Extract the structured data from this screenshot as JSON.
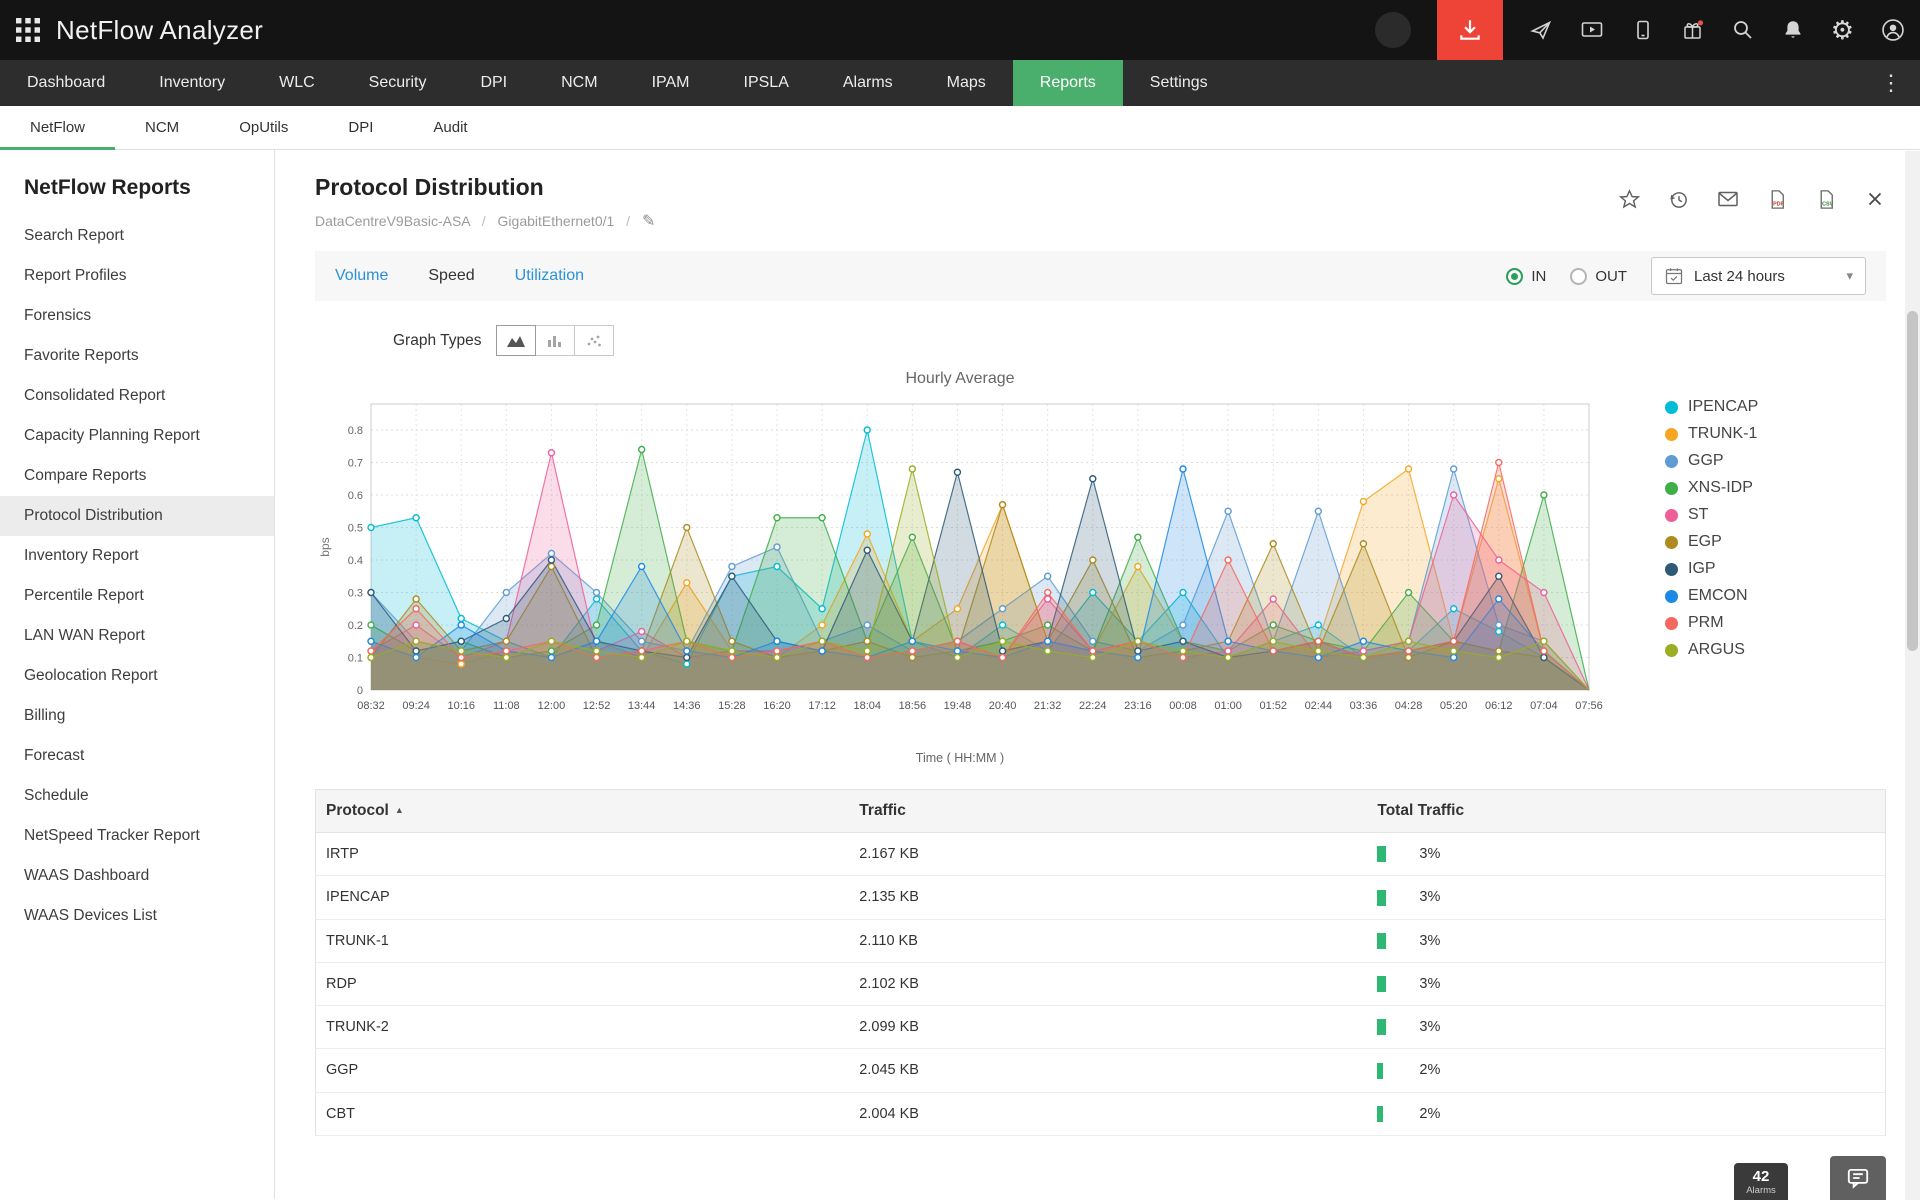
{
  "topbar": {
    "app_title": "NetFlow Analyzer",
    "right_icons": [
      "inactive-circle",
      "download",
      "rocket",
      "screencast",
      "mobile-sync",
      "gift",
      "search",
      "bell",
      "gear",
      "user"
    ]
  },
  "nav": {
    "items": [
      "Dashboard",
      "Inventory",
      "WLC",
      "Security",
      "DPI",
      "NCM",
      "IPAM",
      "IPSLA",
      "Alarms",
      "Maps",
      "Reports",
      "Settings"
    ],
    "active": "Reports"
  },
  "subnav": {
    "items": [
      "NetFlow",
      "NCM",
      "OpUtils",
      "DPI",
      "Audit"
    ],
    "active": "NetFlow"
  },
  "sidebar": {
    "title": "NetFlow Reports",
    "items": [
      "Search Report",
      "Report Profiles",
      "Forensics",
      "Favorite Reports",
      "Consolidated Report",
      "Capacity Planning Report",
      "Compare Reports",
      "Protocol Distribution",
      "Inventory Report",
      "Percentile Report",
      "LAN WAN Report",
      "Geolocation Report",
      "Billing",
      "Forecast",
      "Schedule",
      "NetSpeed Tracker Report",
      "WAAS Dashboard",
      "WAAS Devices List"
    ],
    "active": "Protocol Distribution"
  },
  "page": {
    "title": "Protocol Distribution",
    "breadcrumb": [
      "DataCentreV9Basic-ASA",
      "GigabitEthernet0/1"
    ],
    "action_icons": [
      "favorite-star",
      "history",
      "email",
      "export-pdf",
      "export-csv",
      "close"
    ],
    "view_tabs": {
      "items": [
        "Volume",
        "Speed",
        "Utilization"
      ],
      "active": "Speed"
    },
    "direction": {
      "options": [
        "IN",
        "OUT"
      ],
      "selected": "IN"
    },
    "time_range": "Last 24 hours",
    "graph_types_label": "Graph Types"
  },
  "chart_data": {
    "type": "area",
    "title": "Hourly Average",
    "xlabel": "Time ( HH:MM )",
    "ylabel": "bps",
    "ylim": [
      0,
      0.8
    ],
    "grid": true,
    "legend_position": "right",
    "x": [
      "08:32",
      "09:24",
      "10:16",
      "11:08",
      "12:00",
      "12:52",
      "13:44",
      "14:36",
      "15:28",
      "16:20",
      "17:12",
      "18:04",
      "18:56",
      "19:48",
      "20:40",
      "21:32",
      "22:24",
      "23:16",
      "00:08",
      "01:00",
      "01:52",
      "02:44",
      "03:36",
      "04:28",
      "05:20",
      "06:12",
      "07:04",
      "07:56"
    ],
    "series": [
      {
        "name": "IPENCAP",
        "color": "#00bcd4",
        "values": [
          0.5,
          0.53,
          0.22,
          0.15,
          0.1,
          0.28,
          0.12,
          0.08,
          0.35,
          0.38,
          0.25,
          0.8,
          0.15,
          0.1,
          0.2,
          0.12,
          0.3,
          0.15,
          0.3,
          0.1,
          0.15,
          0.2,
          0.1,
          0.12,
          0.25,
          0.18,
          0.1,
          0.0
        ]
      },
      {
        "name": "TRUNK-1",
        "color": "#f5a623",
        "values": [
          0.15,
          0.1,
          0.08,
          0.12,
          0.1,
          0.15,
          0.1,
          0.33,
          0.12,
          0.1,
          0.2,
          0.48,
          0.15,
          0.25,
          0.57,
          0.15,
          0.12,
          0.38,
          0.15,
          0.1,
          0.12,
          0.15,
          0.58,
          0.68,
          0.15,
          0.65,
          0.12,
          0.0
        ]
      },
      {
        "name": "GGP",
        "color": "#5e9cd3",
        "values": [
          0.3,
          0.15,
          0.12,
          0.3,
          0.42,
          0.3,
          0.15,
          0.12,
          0.38,
          0.44,
          0.15,
          0.2,
          0.12,
          0.15,
          0.25,
          0.35,
          0.15,
          0.12,
          0.2,
          0.55,
          0.15,
          0.55,
          0.12,
          0.15,
          0.68,
          0.2,
          0.15,
          0.0
        ]
      },
      {
        "name": "XNS-IDP",
        "color": "#3fae49",
        "values": [
          0.2,
          0.12,
          0.15,
          0.1,
          0.12,
          0.2,
          0.74,
          0.15,
          0.12,
          0.53,
          0.53,
          0.15,
          0.47,
          0.12,
          0.15,
          0.2,
          0.12,
          0.47,
          0.15,
          0.12,
          0.2,
          0.15,
          0.12,
          0.3,
          0.15,
          0.12,
          0.6,
          0.0
        ]
      },
      {
        "name": "ST",
        "color": "#ee5e99",
        "values": [
          0.12,
          0.2,
          0.1,
          0.15,
          0.73,
          0.12,
          0.18,
          0.1,
          0.12,
          0.12,
          0.15,
          0.1,
          0.12,
          0.15,
          0.1,
          0.28,
          0.12,
          0.15,
          0.1,
          0.12,
          0.28,
          0.1,
          0.12,
          0.15,
          0.6,
          0.4,
          0.3,
          0.0
        ]
      },
      {
        "name": "EGP",
        "color": "#ad8b1e",
        "values": [
          0.1,
          0.28,
          0.12,
          0.15,
          0.38,
          0.1,
          0.12,
          0.5,
          0.15,
          0.1,
          0.12,
          0.15,
          0.1,
          0.12,
          0.57,
          0.15,
          0.4,
          0.1,
          0.12,
          0.15,
          0.45,
          0.12,
          0.45,
          0.1,
          0.15,
          0.12,
          0.1,
          0.0
        ]
      },
      {
        "name": "IGP",
        "color": "#2e5a77",
        "values": [
          0.3,
          0.12,
          0.15,
          0.22,
          0.4,
          0.15,
          0.12,
          0.1,
          0.35,
          0.15,
          0.12,
          0.43,
          0.15,
          0.67,
          0.12,
          0.15,
          0.65,
          0.12,
          0.15,
          0.1,
          0.12,
          0.15,
          0.1,
          0.12,
          0.15,
          0.35,
          0.1,
          0.0
        ]
      },
      {
        "name": "EMCON",
        "color": "#1e88e5",
        "values": [
          0.15,
          0.1,
          0.2,
          0.12,
          0.1,
          0.15,
          0.38,
          0.12,
          0.1,
          0.15,
          0.12,
          0.1,
          0.15,
          0.12,
          0.1,
          0.15,
          0.12,
          0.1,
          0.68,
          0.15,
          0.12,
          0.1,
          0.15,
          0.12,
          0.1,
          0.28,
          0.12,
          0.0
        ]
      },
      {
        "name": "PRM",
        "color": "#f4695e",
        "values": [
          0.12,
          0.25,
          0.1,
          0.12,
          0.15,
          0.1,
          0.12,
          0.15,
          0.1,
          0.12,
          0.15,
          0.1,
          0.12,
          0.15,
          0.1,
          0.3,
          0.12,
          0.15,
          0.1,
          0.4,
          0.12,
          0.15,
          0.1,
          0.12,
          0.15,
          0.7,
          0.12,
          0.0
        ]
      },
      {
        "name": "ARGUS",
        "color": "#9aad23",
        "values": [
          0.1,
          0.15,
          0.12,
          0.1,
          0.15,
          0.12,
          0.1,
          0.15,
          0.12,
          0.1,
          0.15,
          0.12,
          0.68,
          0.1,
          0.15,
          0.12,
          0.1,
          0.15,
          0.12,
          0.1,
          0.15,
          0.12,
          0.1,
          0.15,
          0.12,
          0.1,
          0.15,
          0.0
        ]
      }
    ]
  },
  "table": {
    "columns": [
      "Protocol",
      "Traffic",
      "Total Traffic"
    ],
    "sort_column": "Protocol",
    "sort_direction": "asc",
    "rows": [
      {
        "protocol": "IRTP",
        "traffic": "2.167 KB",
        "total": "3%",
        "pct": 3
      },
      {
        "protocol": "IPENCAP",
        "traffic": "2.135 KB",
        "total": "3%",
        "pct": 3
      },
      {
        "protocol": "TRUNK-1",
        "traffic": "2.110 KB",
        "total": "3%",
        "pct": 3
      },
      {
        "protocol": "RDP",
        "traffic": "2.102 KB",
        "total": "3%",
        "pct": 3
      },
      {
        "protocol": "TRUNK-2",
        "traffic": "2.099 KB",
        "total": "3%",
        "pct": 3
      },
      {
        "protocol": "GGP",
        "traffic": "2.045 KB",
        "total": "2%",
        "pct": 2
      },
      {
        "protocol": "CBT",
        "traffic": "2.004 KB",
        "total": "2%",
        "pct": 2
      }
    ]
  },
  "floating": {
    "alarms_count": "42",
    "alarms_label": "Alarms"
  },
  "colors": {
    "accent_green": "#4aae6c",
    "topbar_red": "#ee4437",
    "link_blue": "#2a93d5",
    "bar_green": "#2eb873"
  }
}
